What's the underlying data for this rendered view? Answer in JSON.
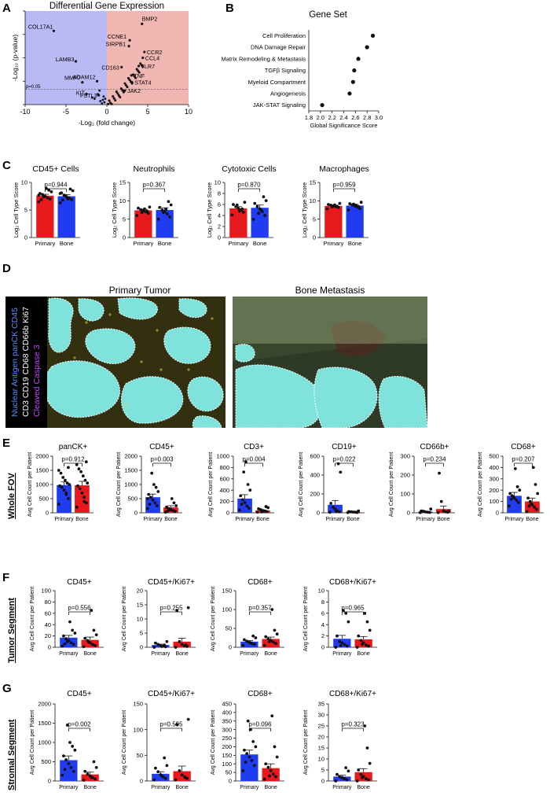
{
  "colors": {
    "primary_red": "#e8191c",
    "bone_blue": "#1f3cf0",
    "volcano_left": "#b9b9f5",
    "volcano_right": "#f1b7b3",
    "tumor_cyan": "#7fe3dc"
  },
  "panel_letters": [
    "A",
    "B",
    "C",
    "D",
    "E",
    "F",
    "G"
  ],
  "panel_A": {
    "title": "Differential Gene Expression",
    "ylabel": "-Log₁₀ (p-value)",
    "xlabel": "-Log₂ (fold change)",
    "threshold_label": "p=0.05",
    "xticks": [
      "-10",
      "-5",
      "0",
      "5",
      "10"
    ],
    "yticks": [
      "0",
      "2",
      "4",
      "6",
      "8"
    ],
    "gene_labels": [
      "COL17A1",
      "LAMB3",
      "MMP7",
      "ADAM12",
      "KIT",
      "FSTL3",
      "BMP2",
      "CCNE1",
      "SIRPB1",
      "CCR2",
      "CCL4",
      "TLR7",
      "CD163",
      "TNF",
      "STAT4",
      "JAK2"
    ]
  },
  "panel_B": {
    "title": "Gene Set",
    "xlabel": "Global Significance Score",
    "xticks": [
      "1.8",
      "2.0",
      "2.2",
      "2.4",
      "2.6",
      "2.8",
      "3.0"
    ]
  },
  "panel_C": {
    "ylabel": "Log₂ Cell Type Score",
    "groups": [
      "Primary",
      "Bone"
    ]
  },
  "panel_D": {
    "left_title": "Primary Tumor",
    "right_title": "Bone Metastasis",
    "legend_lines": [
      {
        "text": "Nuclear Antigen panCK CD45",
        "color": "#5b8cff"
      },
      {
        "text": "CD3 CD19 CD68 CD66b Ki67",
        "color": "#ffffff"
      },
      {
        "text": "Cleaved Caspase 3",
        "color": "#c04bff"
      }
    ]
  },
  "panel_E": {
    "row_label": "Whole FOV",
    "ylabel": "Avg Cell Count per Patient",
    "groups": [
      "Primary",
      "Bone"
    ]
  },
  "panel_F": {
    "row_label": "Tumor Segment",
    "ylabel": "Avg Cell Count per Patient",
    "groups": [
      "Primary",
      "Bone"
    ]
  },
  "panel_G": {
    "row_label": "Stromal Segment",
    "ylabel": "Avg Cell Count per Patient",
    "groups": [
      "Primary",
      "Bone"
    ]
  },
  "chart_data": [
    {
      "panel": "A",
      "type": "scatter",
      "title": "Differential Gene Expression",
      "xlabel": "-Log₂ (fold change)",
      "ylabel": "-Log₁₀ (p-value)",
      "xlim": [
        -10,
        10
      ],
      "ylim": [
        0,
        8
      ],
      "labeled_points": [
        {
          "label": "COL17A1",
          "x": -6.5,
          "y": 6.3
        },
        {
          "label": "LAMB3",
          "x": -3.8,
          "y": 3.7
        },
        {
          "label": "MMP7",
          "x": -3.0,
          "y": 1.9
        },
        {
          "label": "ADAM12",
          "x": -1.2,
          "y": 2.0
        },
        {
          "label": "KIT",
          "x": -2.5,
          "y": 0.9
        },
        {
          "label": "FSTL3",
          "x": -1.0,
          "y": 0.8
        },
        {
          "label": "BMP2",
          "x": 4.3,
          "y": 6.9
        },
        {
          "label": "CCNE1",
          "x": 2.8,
          "y": 5.5
        },
        {
          "label": "SIRPB1",
          "x": 2.7,
          "y": 5.0
        },
        {
          "label": "CCR2",
          "x": 4.6,
          "y": 4.5
        },
        {
          "label": "CCL4",
          "x": 4.4,
          "y": 4.0
        },
        {
          "label": "TLR7",
          "x": 3.9,
          "y": 3.3
        },
        {
          "label": "CD163",
          "x": 1.8,
          "y": 3.2
        },
        {
          "label": "TNF",
          "x": 3.0,
          "y": 2.5
        },
        {
          "label": "STAT4",
          "x": 3.1,
          "y": 1.9
        },
        {
          "label": "JAK2",
          "x": 2.2,
          "y": 1.2
        }
      ]
    },
    {
      "panel": "B",
      "type": "scatter",
      "title": "Gene Set",
      "xlabel": "Global Significance Score",
      "xlim": [
        1.8,
        3.0
      ],
      "categories": [
        "Cell Proliferation",
        "DNA Damage Repair",
        "Matrix Remodeling & Metastasis",
        "TGFβ Signaling",
        "Myeloid Compartment",
        "Angiogenesis",
        "JAK-STAT Signaling"
      ],
      "values": [
        2.9,
        2.8,
        2.65,
        2.58,
        2.56,
        2.5,
        2.03
      ]
    },
    {
      "panel": "C",
      "type": "bar",
      "title": "CD45+ Cells",
      "categories": [
        "Primary",
        "Bone"
      ],
      "values": [
        7.6,
        7.5
      ],
      "errors": [
        0.25,
        0.3
      ],
      "ylim": [
        0,
        10
      ],
      "yticks": [
        0,
        5,
        10
      ],
      "pvalue": "p=0.944",
      "points": [
        [
          6.5,
          7.0,
          7.2,
          7.5,
          7.8,
          8.0,
          8.3,
          8.6,
          8.9,
          7.4,
          6.9,
          7.7
        ],
        [
          6.3,
          6.9,
          7.2,
          7.4,
          7.7,
          8.1,
          8.5,
          8.8,
          7.0,
          7.6,
          6.8,
          8.0
        ]
      ]
    },
    {
      "panel": "C",
      "type": "bar",
      "title": "Neutrophils",
      "categories": [
        "Primary",
        "Bone"
      ],
      "values": [
        7.4,
        7.5
      ],
      "errors": [
        0.3,
        0.6
      ],
      "ylim": [
        0,
        15
      ],
      "yticks": [
        0,
        5,
        10,
        15
      ],
      "pvalue": "p=0.367",
      "points": [
        [
          6.0,
          6.6,
          7.0,
          7.3,
          7.6,
          8.0,
          8.3,
          7.2,
          7.8,
          6.8
        ],
        [
          5.0,
          5.6,
          6.4,
          7.0,
          7.5,
          8.2,
          8.9,
          9.8,
          7.7,
          6.8
        ]
      ]
    },
    {
      "panel": "C",
      "type": "bar",
      "title": "Cytotoxic Cells",
      "categories": [
        "Primary",
        "Bone"
      ],
      "values": [
        5.3,
        5.4
      ],
      "errors": [
        0.3,
        0.5
      ],
      "ylim": [
        0,
        10
      ],
      "yticks": [
        0,
        2,
        4,
        6,
        8,
        10
      ],
      "pvalue": "p=0.870",
      "points": [
        [
          4.1,
          4.6,
          5.0,
          5.3,
          5.6,
          6.0,
          6.4,
          5.2,
          4.8,
          5.9
        ],
        [
          3.3,
          4.0,
          4.7,
          5.2,
          5.6,
          6.2,
          6.7,
          7.4,
          5.0,
          4.4
        ]
      ]
    },
    {
      "panel": "C",
      "type": "bar",
      "title": "Macrophages",
      "categories": [
        "Primary",
        "Bone"
      ],
      "values": [
        8.6,
        8.7
      ],
      "errors": [
        0.2,
        0.3
      ],
      "ylim": [
        0,
        15
      ],
      "yticks": [
        0,
        5,
        10,
        15
      ],
      "pvalue": "p=0.959",
      "points": [
        [
          7.8,
          8.2,
          8.4,
          8.6,
          8.8,
          9.0,
          9.3,
          8.5,
          8.9,
          8.3
        ],
        [
          7.5,
          7.9,
          8.3,
          8.6,
          8.9,
          9.2,
          9.6,
          8.4,
          8.8,
          9.1
        ]
      ]
    },
    {
      "panel": "E",
      "type": "bar",
      "title": "panCK+",
      "categories": [
        "Primary",
        "Bone"
      ],
      "values": [
        980,
        970
      ],
      "errors": [
        110,
        140
      ],
      "ylim": [
        0,
        2000
      ],
      "yticks": [
        0,
        500,
        1000,
        1500,
        2000
      ],
      "pvalue": "p=0.912",
      "points": [
        [
          300,
          500,
          650,
          800,
          900,
          950,
          1000,
          1050,
          1150,
          1250,
          1400,
          1500,
          1600,
          700
        ],
        [
          200,
          350,
          550,
          700,
          850,
          950,
          1050,
          1150,
          1300,
          1450,
          1550,
          1700,
          1800,
          400
        ]
      ]
    },
    {
      "panel": "E",
      "type": "bar",
      "title": "CD45+",
      "categories": [
        "Primary",
        "Bone"
      ],
      "values": [
        550,
        190
      ],
      "errors": [
        110,
        60
      ],
      "ylim": [
        0,
        2000
      ],
      "yticks": [
        0,
        500,
        1000,
        1500,
        2000
      ],
      "pvalue": "p=0.003",
      "points": [
        [
          150,
          250,
          350,
          450,
          550,
          650,
          750,
          900,
          1000,
          1400,
          300,
          500
        ],
        [
          20,
          50,
          80,
          120,
          150,
          200,
          250,
          350,
          500,
          100,
          60
        ]
      ]
    },
    {
      "panel": "E",
      "type": "bar",
      "title": "CD3+",
      "categories": [
        "Primary",
        "Bone"
      ],
      "values": [
        250,
        40
      ],
      "errors": [
        70,
        12
      ],
      "ylim": [
        0,
        1000
      ],
      "yticks": [
        0,
        200,
        400,
        600,
        800,
        1000
      ],
      "pvalue": "p=0.004",
      "points": [
        [
          50,
          80,
          120,
          180,
          230,
          300,
          400,
          500,
          900,
          720,
          150
        ],
        [
          10,
          20,
          30,
          40,
          55,
          70,
          90,
          110,
          25,
          15
        ]
      ]
    },
    {
      "panel": "E",
      "type": "bar",
      "title": "CD19+",
      "categories": [
        "Primary",
        "Bone"
      ],
      "values": [
        85,
        8
      ],
      "errors": [
        45,
        4
      ],
      "ylim": [
        0,
        600
      ],
      "yticks": [
        0,
        200,
        400,
        600
      ],
      "pvalue": "p=0.022",
      "points": [
        [
          5,
          10,
          20,
          40,
          60,
          100,
          430,
          520,
          15
        ],
        [
          2,
          4,
          6,
          8,
          10,
          12,
          20,
          5
        ]
      ]
    },
    {
      "panel": "E",
      "type": "bar",
      "title": "CD66b+",
      "categories": [
        "Primary",
        "Bone"
      ],
      "values": [
        5,
        20
      ],
      "errors": [
        3,
        15
      ],
      "ylim": [
        0,
        300
      ],
      "yticks": [
        0,
        100,
        200,
        300
      ],
      "pvalue": "p=0.234",
      "points": [
        [
          1,
          2,
          3,
          5,
          8,
          10,
          20
        ],
        [
          1,
          3,
          5,
          10,
          60,
          210,
          8
        ]
      ]
    },
    {
      "panel": "E",
      "type": "bar",
      "title": "CD68+",
      "categories": [
        "Primary",
        "Bone"
      ],
      "values": [
        150,
        100
      ],
      "errors": [
        30,
        30
      ],
      "ylim": [
        0,
        500
      ],
      "yticks": [
        0,
        100,
        200,
        300,
        400,
        500
      ],
      "pvalue": "p=0.207",
      "points": [
        [
          60,
          90,
          110,
          130,
          150,
          170,
          200,
          230,
          390,
          140,
          120
        ],
        [
          10,
          30,
          50,
          70,
          100,
          130,
          170,
          250,
          400,
          80,
          60
        ]
      ]
    },
    {
      "panel": "F",
      "type": "bar",
      "title": "CD45+",
      "categories": [
        "Primary",
        "Bone"
      ],
      "values": [
        17,
        13
      ],
      "errors": [
        4,
        5
      ],
      "ylim": [
        0,
        100
      ],
      "yticks": [
        0,
        20,
        40,
        60,
        80,
        100
      ],
      "pvalue": "p=0.556",
      "points": [
        [
          2,
          5,
          8,
          12,
          15,
          20,
          25,
          30,
          45,
          10,
          6
        ],
        [
          1,
          3,
          5,
          8,
          12,
          16,
          22,
          30,
          65,
          9
        ]
      ]
    },
    {
      "panel": "F",
      "type": "bar",
      "title": "CD45+/Ki67+",
      "categories": [
        "Primary",
        "Bone"
      ],
      "values": [
        0.8,
        2.0
      ],
      "errors": [
        0.3,
        1.2
      ],
      "ylim": [
        0,
        20
      ],
      "yticks": [
        0,
        5,
        10,
        15,
        20
      ],
      "pvalue": "p=0.255",
      "points": [
        [
          0,
          0.2,
          0.4,
          0.6,
          1.0,
          1.5,
          2.0,
          0.8,
          0.3
        ],
        [
          0,
          0.3,
          0.5,
          1.0,
          2.0,
          13.0,
          14.0,
          0.8
        ]
      ]
    },
    {
      "panel": "F",
      "type": "bar",
      "title": "CD68+",
      "categories": [
        "Primary",
        "Bone"
      ],
      "values": [
        15,
        22
      ],
      "errors": [
        3,
        5
      ],
      "ylim": [
        0,
        150
      ],
      "yticks": [
        0,
        50,
        100,
        150
      ],
      "pvalue": "p=0.357",
      "points": [
        [
          5,
          8,
          10,
          13,
          16,
          20,
          25,
          30,
          12
        ],
        [
          5,
          10,
          14,
          18,
          22,
          28,
          35,
          45,
          100,
          15
        ]
      ]
    },
    {
      "panel": "F",
      "type": "bar",
      "title": "CD68+/Ki67+",
      "categories": [
        "Primary",
        "Bone"
      ],
      "values": [
        1.5,
        1.4
      ],
      "errors": [
        0.6,
        0.5
      ],
      "ylim": [
        0,
        10
      ],
      "yticks": [
        0,
        2,
        4,
        6,
        8,
        10
      ],
      "pvalue": "p=0.965",
      "points": [
        [
          0,
          0.2,
          0.5,
          0.8,
          1.0,
          2.0,
          4.5,
          6.0,
          6.5,
          0.3
        ],
        [
          0,
          0.2,
          0.4,
          0.8,
          1.2,
          2.0,
          3.0,
          4.5,
          6.0,
          0.5
        ]
      ]
    },
    {
      "panel": "G",
      "type": "bar",
      "title": "CD45+",
      "categories": [
        "Primary",
        "Bone"
      ],
      "values": [
        540,
        170
      ],
      "errors": [
        110,
        60
      ],
      "ylim": [
        0,
        2000
      ],
      "yticks": [
        0,
        500,
        1000,
        1500,
        2000
      ],
      "pvalue": "p=0.002",
      "points": [
        [
          150,
          250,
          350,
          450,
          550,
          650,
          800,
          900,
          1000,
          1450,
          300
        ],
        [
          20,
          50,
          90,
          130,
          180,
          250,
          350,
          500,
          100
        ]
      ]
    },
    {
      "panel": "G",
      "type": "bar",
      "title": "CD45+/Ki67+",
      "categories": [
        "Primary",
        "Bone"
      ],
      "values": [
        14,
        19
      ],
      "errors": [
        4,
        10
      ],
      "ylim": [
        0,
        150
      ],
      "yticks": [
        0,
        50,
        100,
        150
      ],
      "pvalue": "p=0.595",
      "points": [
        [
          2,
          5,
          8,
          12,
          18,
          25,
          30,
          45,
          10
        ],
        [
          2,
          5,
          8,
          12,
          20,
          110,
          120,
          6
        ]
      ]
    },
    {
      "panel": "G",
      "type": "bar",
      "title": "CD68+",
      "categories": [
        "Primary",
        "Bone"
      ],
      "values": [
        155,
        75
      ],
      "errors": [
        25,
        25
      ],
      "ylim": [
        0,
        450
      ],
      "yticks": [
        0,
        50,
        100,
        150,
        200,
        250,
        300,
        350,
        400,
        450
      ],
      "pvalue": "p=0.096",
      "points": [
        [
          60,
          90,
          120,
          140,
          160,
          180,
          200,
          230,
          300,
          350,
          110
        ],
        [
          10,
          25,
          40,
          60,
          80,
          100,
          140,
          200,
          380,
          30
        ]
      ]
    },
    {
      "panel": "G",
      "type": "bar",
      "title": "CD68+/Ki67+",
      "categories": [
        "Primary",
        "Bone"
      ],
      "values": [
        2.0,
        4.0
      ],
      "errors": [
        0.6,
        1.6
      ],
      "ylim": [
        0,
        35
      ],
      "yticks": [
        0,
        5,
        10,
        15,
        20,
        25,
        30,
        35
      ],
      "pvalue": "p=0.323",
      "points": [
        [
          0,
          0.5,
          1.0,
          1.5,
          2.0,
          3.0,
          4.5,
          6.0,
          1.2
        ],
        [
          0,
          0.5,
          1.0,
          2.0,
          3.0,
          5.0,
          8.0,
          15.0,
          25.0,
          1.5
        ]
      ]
    }
  ]
}
